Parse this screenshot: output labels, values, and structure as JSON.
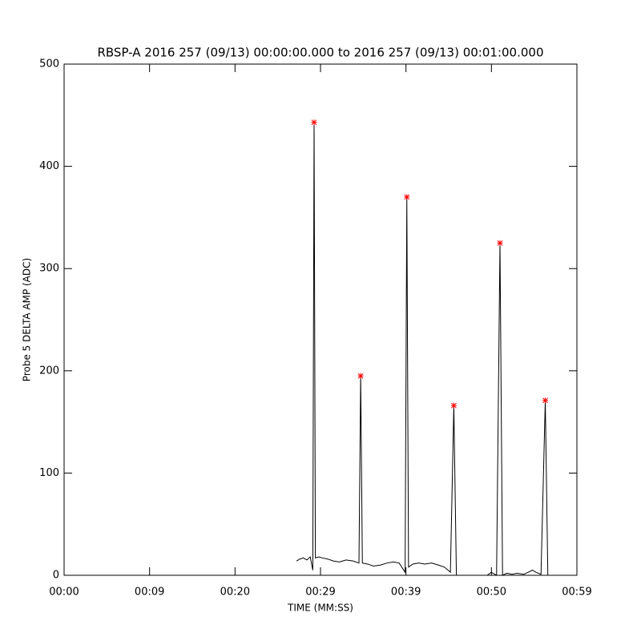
{
  "chart_data": {
    "type": "line",
    "title": "RBSP-A 2016 257 (09/13) 00:00:00.000 to 2016 257 (09/13) 00:01:00.000",
    "xlabel": "TIME (MM:SS)",
    "ylabel": "Probe 5 DELTA AMP (ADC)",
    "xlim": [
      0,
      60
    ],
    "ylim": [
      0,
      500
    ],
    "xticks": [
      {
        "value": 0,
        "label": "00:00"
      },
      {
        "value": 10,
        "label": "00:09"
      },
      {
        "value": 20,
        "label": "00:20"
      },
      {
        "value": 30,
        "label": "00:29"
      },
      {
        "value": 40,
        "label": "00:39"
      },
      {
        "value": 50,
        "label": "00:50"
      },
      {
        "value": 60,
        "label": "00:59"
      }
    ],
    "yticks": [
      0,
      100,
      200,
      300,
      400,
      500
    ],
    "series": [
      {
        "color": "#000000",
        "marker": "none",
        "x": [
          27.2,
          27.6,
          28.0,
          28.4,
          28.8,
          29.1,
          29.25,
          29.4,
          29.8,
          30.2,
          30.8,
          31.5,
          32.2,
          33.0,
          33.8,
          34.5,
          34.7,
          34.9,
          35.5,
          36.2,
          37.0,
          37.8,
          38.5,
          39.2,
          39.9,
          40.1,
          40.3,
          40.8,
          41.5,
          42.2,
          43.0,
          43.8,
          44.5,
          45.2,
          45.6,
          45.9,
          46.5,
          47.2,
          48.0,
          48.8,
          49.5,
          50.0,
          50.6,
          51.0,
          51.3,
          51.8,
          52.4,
          53.0,
          53.8,
          54.3,
          54.8,
          55.2,
          55.8,
          56.3,
          56.6,
          57.2
        ],
        "values": [
          14,
          16,
          17,
          15,
          18,
          5,
          443,
          17,
          18,
          17,
          16,
          14,
          13,
          15,
          14,
          12,
          195,
          12,
          11,
          9,
          10,
          12,
          13,
          12,
          3,
          370,
          8,
          11,
          12,
          11,
          12,
          10,
          8,
          3,
          166,
          0,
          0,
          0,
          0,
          0,
          0,
          3,
          0,
          325,
          0,
          2,
          1,
          2,
          1,
          3,
          5,
          3,
          1,
          171,
          0,
          0
        ]
      },
      {
        "color": "#ff0000",
        "marker": "asterisk",
        "x": [
          29.25,
          34.7,
          40.1,
          45.6,
          51.0,
          56.3
        ],
        "values": [
          443,
          195,
          370,
          166,
          325,
          171
        ]
      }
    ]
  }
}
